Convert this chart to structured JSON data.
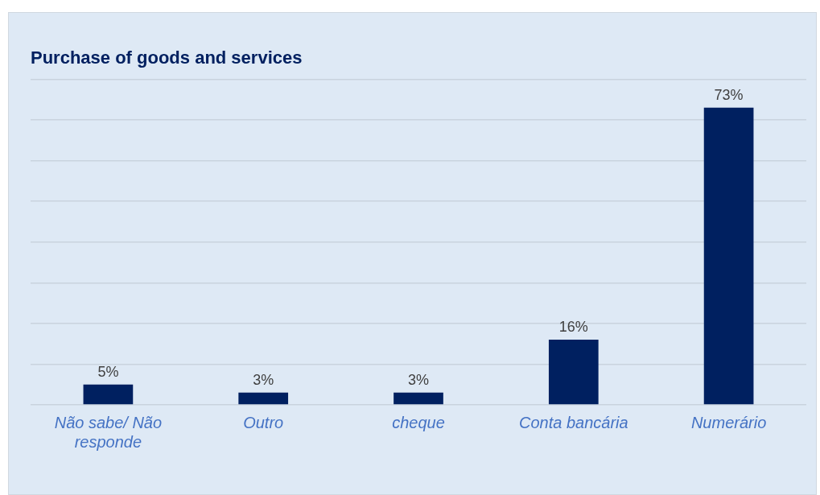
{
  "chart_data": {
    "type": "bar",
    "title": "Purchase of goods and services",
    "categories": [
      "Não sabe/ Não responde",
      "Outro",
      "cheque",
      "Conta bancária",
      "Numerário"
    ],
    "values": [
      5,
      3,
      3,
      16,
      73
    ],
    "value_labels": [
      "5%",
      "3%",
      "3%",
      "16%",
      "73%"
    ],
    "color": "#002060",
    "ylim": [
      0,
      80
    ],
    "yticks": [
      {
        "value": 0,
        "label": null
      },
      {
        "value": 10,
        "label": null
      },
      {
        "value": 20,
        "label": null
      },
      {
        "value": 30,
        "label": null
      },
      {
        "value": 40,
        "label": null
      },
      {
        "value": 50,
        "label": null
      },
      {
        "value": 60,
        "label": null
      },
      {
        "value": 70,
        "label": null
      },
      {
        "value": 80,
        "label": null
      }
    ],
    "grid": "y",
    "tick_labels": "x",
    "legend": false
  }
}
